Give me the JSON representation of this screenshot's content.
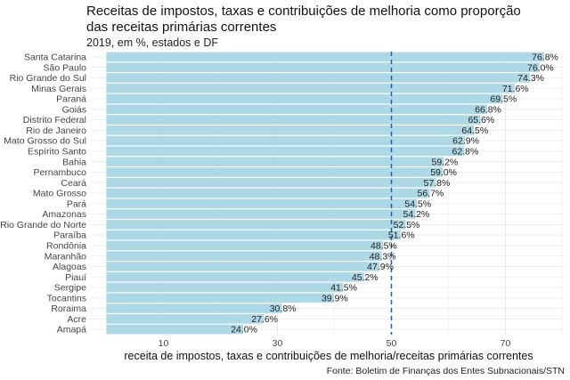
{
  "chart_data": {
    "type": "bar",
    "orientation": "horizontal",
    "title": "Receitas de impostos, taxas e contribuições de melhoria como proporção das receitas primárias correntes",
    "title_lines": [
      "Receitas de impostos, taxas e contribuições de melhoria como proporção",
      "das receitas primárias correntes"
    ],
    "subtitle": "2019, em %, estados e DF",
    "xlabel": "receita de impostos, taxas e contribuições de melhoria/receitas primárias correntes",
    "caption": "Fonte: Boletim de Finanças dos Entes Subnacionais/STN",
    "xlim": [
      0,
      80
    ],
    "xticks": [
      10,
      30,
      50,
      70
    ],
    "reference_line": 50,
    "bar_color": "#add8e6",
    "reference_line_color": "#1f5fa8",
    "grid": true,
    "categories": [
      "Santa Catarina",
      "São Paulo",
      "Rio Grande do Sul",
      "Minas Gerais",
      "Paraná",
      "Goiás",
      "Distrito Federal",
      "Rio de Janeiro",
      "Mato Grosso do Sul",
      "Espírito Santo",
      "Bahia",
      "Pernambuco",
      "Ceará",
      "Mato Grosso",
      "Pará",
      "Amazonas",
      "Rio Grande do Norte",
      "Paraíba",
      "Rondônia",
      "Maranhão",
      "Alagoas",
      "Piauí",
      "Sergipe",
      "Tocantins",
      "Roraima",
      "Acre",
      "Amapá"
    ],
    "values": [
      76.8,
      76.0,
      74.3,
      71.6,
      69.5,
      66.8,
      65.6,
      64.5,
      62.9,
      62.8,
      59.2,
      59.0,
      57.8,
      56.7,
      54.5,
      54.2,
      52.5,
      51.6,
      48.5,
      48.3,
      47.9,
      45.2,
      41.5,
      39.9,
      30.8,
      27.6,
      24.0
    ],
    "value_labels": [
      "76.8%",
      "76.0%",
      "74.3%",
      "71.6%",
      "69.5%",
      "66.8%",
      "65.6%",
      "64.5%",
      "62.9%",
      "62.8%",
      "59.2%",
      "59.0%",
      "57.8%",
      "56.7%",
      "54.5%",
      "54.2%",
      "52.5%",
      "51.6%",
      "48.5%",
      "48.3%",
      "47.9%",
      "45.2%",
      "41.5%",
      "39.9%",
      "30.8%",
      "27.6%",
      "24.0%"
    ]
  }
}
